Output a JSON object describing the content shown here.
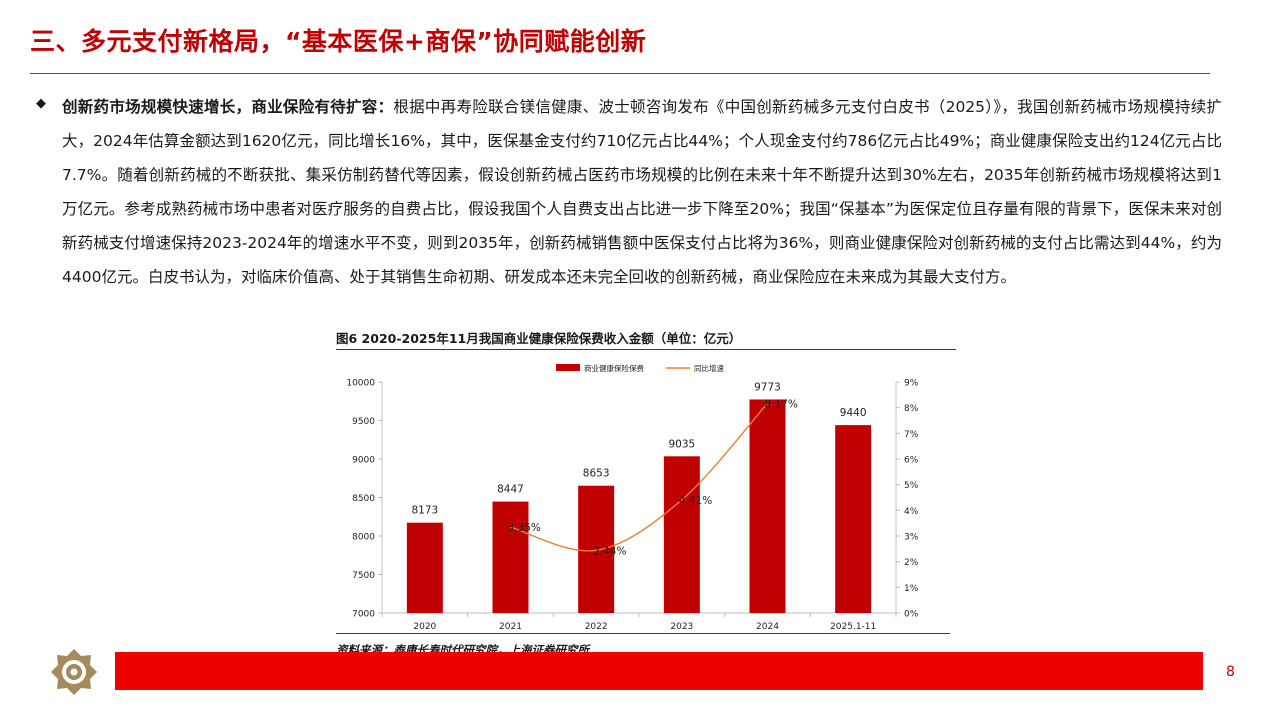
{
  "title": "三、多元支付新格局，“基本医保+商保”协同赋能创新",
  "paragraph": {
    "lead": "创新药市场规模快速增长，商业保险有待扩容：",
    "body": "根据中再寿险联合镁信健康、波士顿咨询发布《中国创新药械多元支付白皮书（2025）》，我国创新药械市场规模持续扩大，2024年估算金额达到1620亿元，同比增长16%，其中，医保基金支付约710亿元占比44%；个人现金支付约786亿元占比49%；商业健康保险支出约124亿元占比7.7%。随着创新药械的不断获批、集采仿制药替代等因素，假设创新药械占医药市场规模的比例在未来十年不断提升达到30%左右，2035年创新药械市场规模将达到1万亿元。参考成熟药械市场中患者对医疗服务的自费占比，假设我国个人自费支出占比进一步下降至20%；我国“保基本”为医保定位且存量有限的背景下，医保未来对创新药械支付增速保持2023-2024年的增速水平不变，则到2035年，创新药械销售额中医保支付占比将为36%，则商业健康保险对创新药械的支付占比需达到44%，约为4400亿元。白皮书认为，对临床价值高、处于其销售生命初期、研发成本还未完全回收的创新药械，商业保险应在未来成为其最大支付方。"
  },
  "figure": {
    "title": "图6 2020-2025年11月我国商业健康保险保费收入金额（单位：亿元）",
    "source": "资料来源：泰康长寿时代研究院，上海证券研究所"
  },
  "chart_data": {
    "type": "bar",
    "categories": [
      "2020",
      "2021",
      "2022",
      "2023",
      "2024",
      "2025.1-11"
    ],
    "series": [
      {
        "name": "商业健康保险保费",
        "type": "bar",
        "axis": "left",
        "values": [
          8173,
          8447,
          8653,
          9035,
          9773,
          9440
        ],
        "color": "#c00000",
        "labels": [
          "8173",
          "8447",
          "8653",
          "9035",
          "9773",
          "9440"
        ]
      },
      {
        "name": "同比增速",
        "type": "line",
        "axis": "right",
        "values": [
          null,
          3.35,
          2.44,
          4.41,
          8.17,
          null
        ],
        "color": "#ed7d31",
        "labels": [
          "",
          "3.35%",
          "2.44%",
          "4.41%",
          "8.17%",
          ""
        ]
      }
    ],
    "y_left": {
      "min": 7000,
      "max": 10000,
      "ticks": [
        "7000",
        "7500",
        "8000",
        "8500",
        "9000",
        "9500",
        "10000"
      ]
    },
    "y_right": {
      "min": 0,
      "max": 9,
      "ticks": [
        "0%",
        "1%",
        "2%",
        "3%",
        "4%",
        "5%",
        "6%",
        "7%",
        "8%",
        "9%"
      ]
    },
    "legend_position": "top-center",
    "grid": false
  },
  "page_number": "8",
  "colors": {
    "accent": "#c00000",
    "footer": "#ee0000",
    "line": "#ed7d31"
  }
}
